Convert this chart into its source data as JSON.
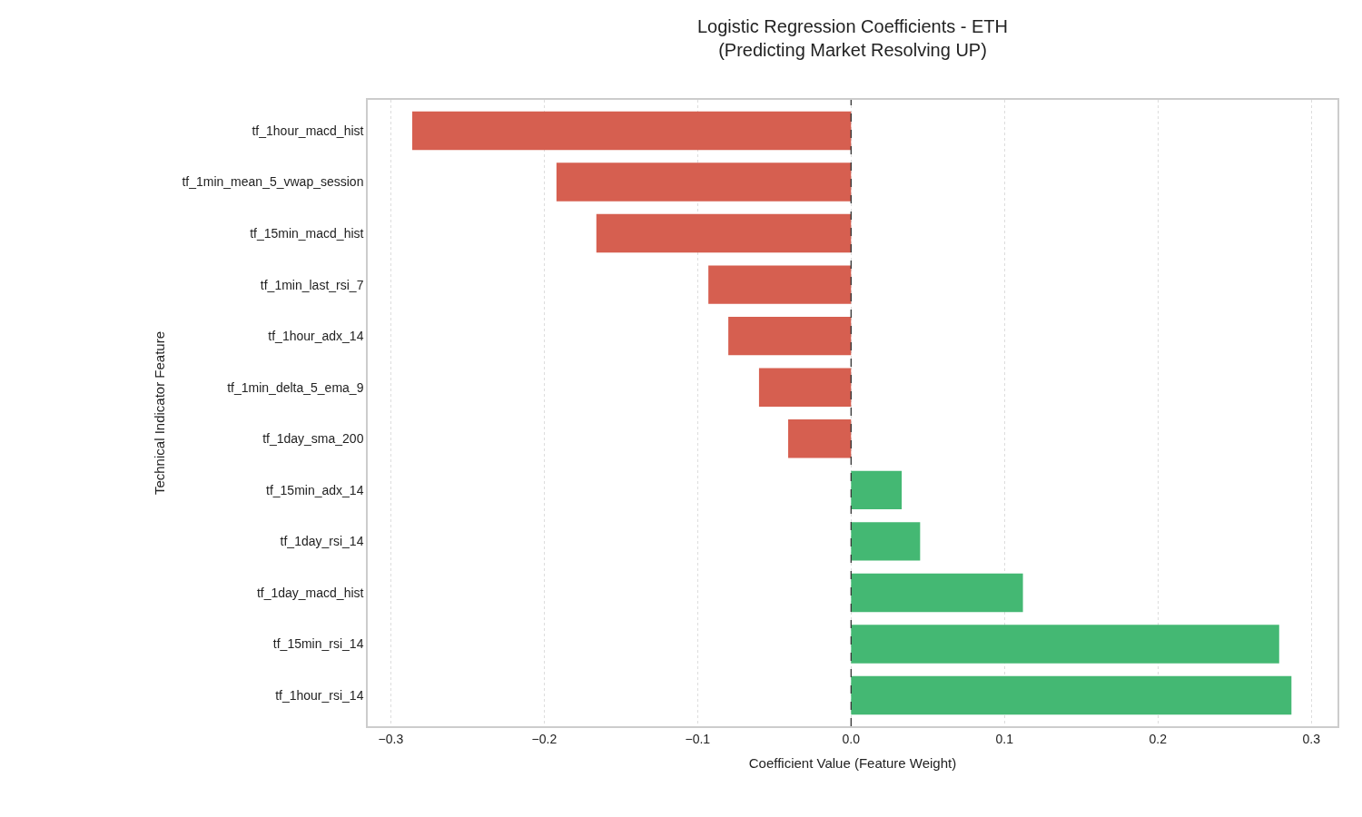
{
  "chart_data": {
    "type": "bar",
    "orientation": "horizontal",
    "title": "Logistic Regression Coefficients - ETH\n(Predicting Market Resolving UP)",
    "xlabel": "Coefficient Value (Feature Weight)",
    "ylabel": "Technical Indicator Feature",
    "categories": [
      "tf_1hour_macd_hist",
      "tf_1min_mean_5_vwap_session",
      "tf_15min_macd_hist",
      "tf_1min_last_rsi_7",
      "tf_1hour_adx_14",
      "tf_1min_delta_5_ema_9",
      "tf_1day_sma_200",
      "tf_15min_adx_14",
      "tf_1day_rsi_14",
      "tf_1day_macd_hist",
      "tf_15min_rsi_14",
      "tf_1hour_rsi_14"
    ],
    "values": [
      -0.286,
      -0.192,
      -0.166,
      -0.093,
      -0.08,
      -0.06,
      -0.041,
      0.033,
      0.045,
      0.112,
      0.279,
      0.287
    ],
    "colors": [
      "#d65f50",
      "#d65f50",
      "#d65f50",
      "#d65f50",
      "#d65f50",
      "#d65f50",
      "#d65f50",
      "#44b873",
      "#44b873",
      "#44b873",
      "#44b873",
      "#44b873"
    ],
    "xlim": [
      -0.315,
      0.317
    ],
    "xticks": [
      {
        "value": -0.3,
        "label": "−0.3"
      },
      {
        "value": -0.2,
        "label": "−0.2"
      },
      {
        "value": -0.1,
        "label": "−0.1"
      },
      {
        "value": 0,
        "label": "0.0"
      },
      0.1,
      0.2,
      0.3
    ],
    "ref_lines": [
      {
        "axis": "x",
        "value": 0,
        "color": "#333333",
        "line_style": "dashed"
      }
    ],
    "grid": "x"
  }
}
